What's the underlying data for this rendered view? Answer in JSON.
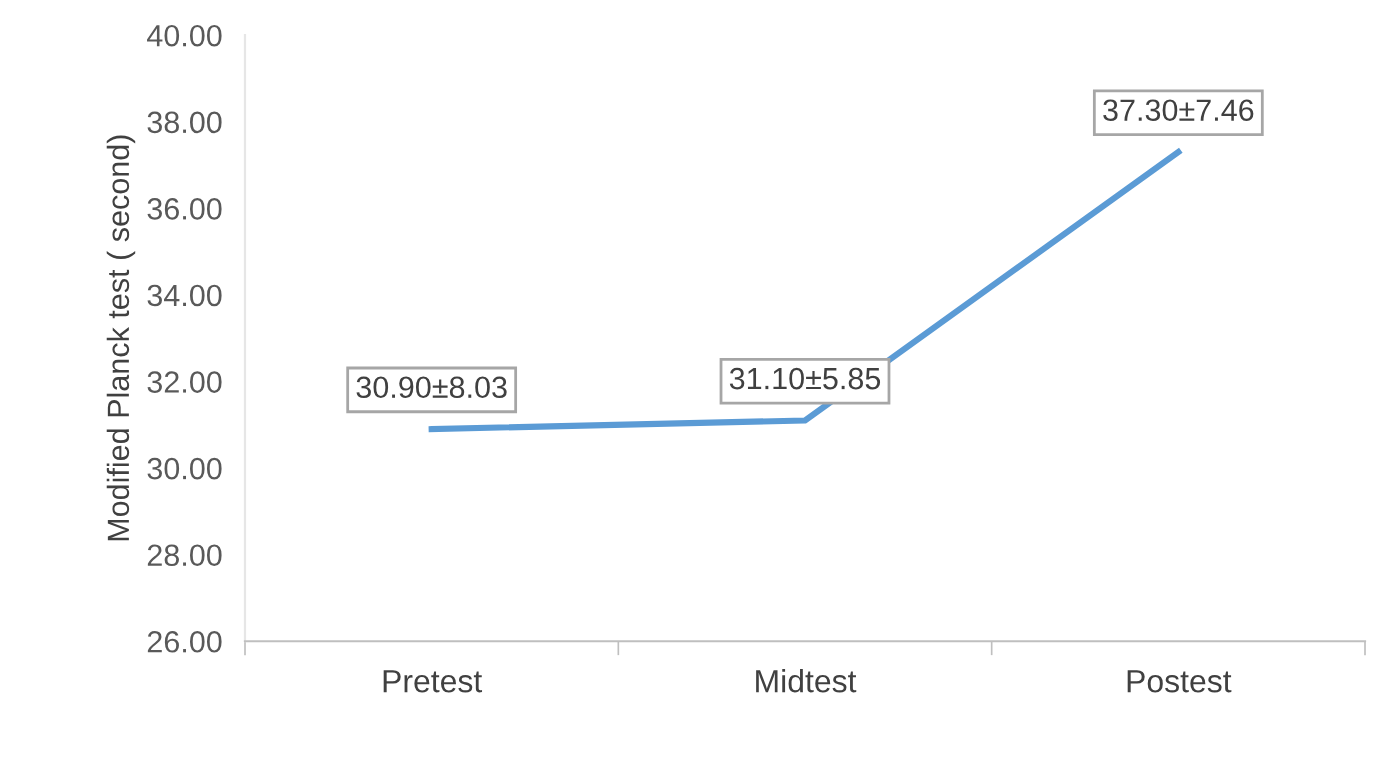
{
  "chart_data": {
    "type": "line",
    "ylabel": "Modified Planck test ( second)",
    "categories": [
      "Pretest",
      "Midtest",
      "Postest"
    ],
    "series": [
      {
        "color": "#5b9bd5",
        "values": [
          30.9,
          31.1,
          37.3
        ],
        "value_labels": [
          "30.90±8.03",
          "31.10±5.85",
          "37.30±7.46"
        ]
      }
    ],
    "ylim": [
      26,
      40
    ],
    "yticks": [
      {
        "value": 26,
        "label": "26.00"
      },
      {
        "value": 28,
        "label": "28.00"
      },
      {
        "value": 30,
        "label": "30.00"
      },
      {
        "value": 32,
        "label": "32.00"
      },
      {
        "value": 34,
        "label": "34.00"
      },
      {
        "value": 36,
        "label": "36.00"
      },
      {
        "value": 38,
        "label": "38.00"
      },
      {
        "value": 40,
        "label": "40.00"
      }
    ],
    "grid": false,
    "legend": false,
    "line_style": "solid"
  }
}
